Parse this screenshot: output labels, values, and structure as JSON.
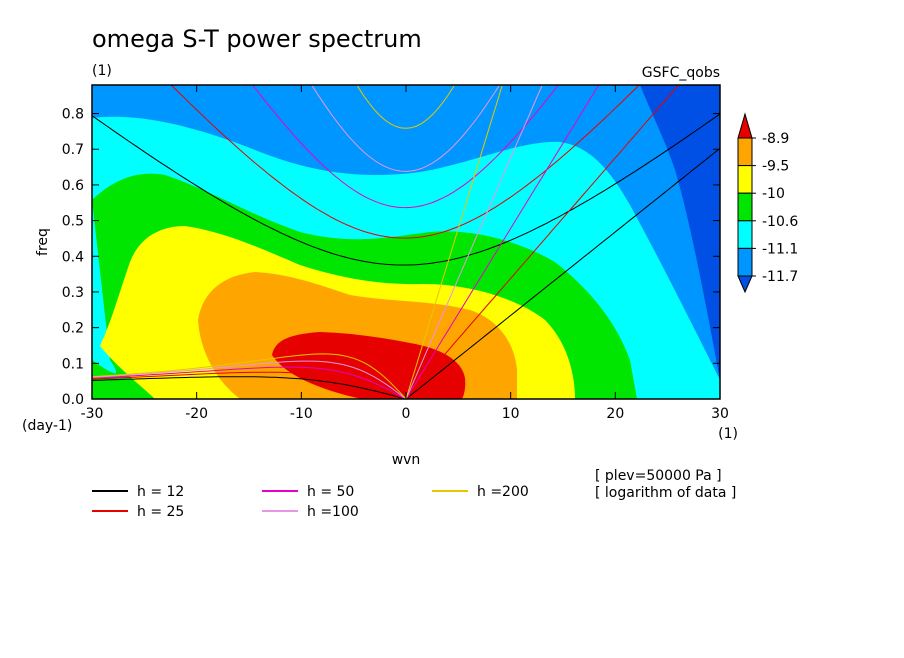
{
  "chart_data": {
    "type": "contour",
    "title": "omega S-T power spectrum",
    "subtitle": "(1)",
    "dataset": "GSFC_qobs",
    "xlabel": "wvn",
    "ylabel": "freq",
    "x_unit": "(1)",
    "y_unit": "(day-1)",
    "xlim": [
      -30,
      30
    ],
    "ylim": [
      0,
      0.88
    ],
    "x_ticks": [
      "-30",
      "-20",
      "-10",
      "0",
      "10",
      "20",
      "30"
    ],
    "y_ticks": [
      "0.0",
      "0.1",
      "0.2",
      "0.3",
      "0.4",
      "0.5",
      "0.6",
      "0.7",
      "0.8"
    ],
    "colorbar": {
      "levels": [
        "-8.9",
        "-9.5",
        "-10",
        "-10.6",
        "-11.1",
        "-11.7"
      ],
      "colors": [
        "#e60000",
        "#ffa500",
        "#ffff00",
        "#00e600",
        "#00ffff",
        "#0096ff",
        "#0050e6"
      ]
    },
    "annotations": [
      "[ plev=50000 Pa ]",
      "[ logarithm of data ]"
    ],
    "legend": [
      {
        "label": "h = 12",
        "color": "#000000"
      },
      {
        "label": "h = 25",
        "color": "#e60000"
      },
      {
        "label": "h = 50",
        "color": "#e600c8"
      },
      {
        "label": "h =100",
        "color": "#e696e6"
      },
      {
        "label": "h =200",
        "color": "#e6c800"
      }
    ],
    "dispersion_h": [
      12,
      25,
      50,
      100,
      200
    ]
  }
}
